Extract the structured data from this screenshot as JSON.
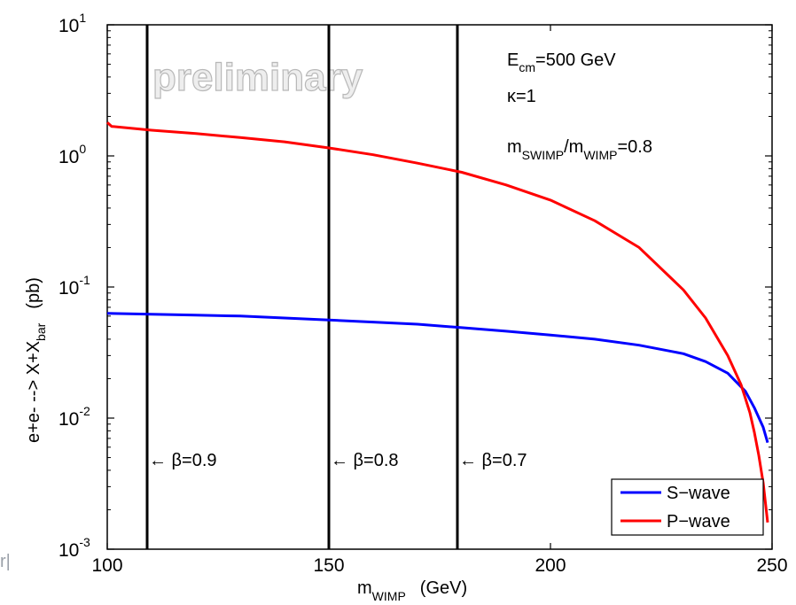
{
  "chart_data": {
    "type": "line",
    "y_scale": "log",
    "xlim": [
      100,
      250
    ],
    "ylim": [
      0.001,
      10
    ],
    "x_ticks": [
      100,
      150,
      200,
      250
    ],
    "y_tick_base": "10",
    "y_tick_exponents": [
      "-3",
      "-2",
      "-1",
      "0",
      "1"
    ],
    "xlabel": {
      "main": "m",
      "sub": "WIMP",
      "unit": "(GeV)"
    },
    "ylabel": {
      "main": "e+e- --> X+X",
      "sub": "bar",
      "unit": "(pb)"
    },
    "watermark": "preliminary",
    "legend_position": "bottom-right",
    "series": [
      {
        "name": "S−wave",
        "color": "#0000ff",
        "x": [
          100,
          110,
          120,
          130,
          140,
          150,
          160,
          170,
          180,
          190,
          200,
          210,
          220,
          230,
          235,
          240,
          244,
          246,
          248,
          249
        ],
        "y": [
          0.063,
          0.062,
          0.061,
          0.06,
          0.058,
          0.056,
          0.054,
          0.052,
          0.049,
          0.046,
          0.043,
          0.04,
          0.036,
          0.031,
          0.027,
          0.022,
          0.016,
          0.012,
          0.0085,
          0.0065
        ]
      },
      {
        "name": "P−wave",
        "color": "#ff0000",
        "x": [
          100,
          101,
          110,
          120,
          130,
          140,
          150,
          160,
          170,
          180,
          190,
          200,
          210,
          220,
          230,
          235,
          240,
          243,
          245,
          246,
          247,
          248,
          249
        ],
        "y": [
          1.8,
          1.68,
          1.57,
          1.48,
          1.38,
          1.28,
          1.15,
          1.02,
          0.88,
          0.75,
          0.6,
          0.46,
          0.32,
          0.2,
          0.095,
          0.058,
          0.03,
          0.018,
          0.011,
          0.0078,
          0.0052,
          0.0032,
          0.0016
        ]
      }
    ],
    "vertical_lines": [
      {
        "x": 109,
        "beta": "0.9"
      },
      {
        "x": 150,
        "beta": "0.8"
      },
      {
        "x": 179,
        "beta": "0.7"
      }
    ],
    "annotations": {
      "ecm": {
        "main": "E",
        "sub": "cm",
        "value": "=500 GeV"
      },
      "kappa": "κ=1",
      "mass_ratio": {
        "a": "m",
        "a_sub": "SWIMP",
        "sep": "/m",
        "b_sub": "WIMP",
        "value": "=0.8"
      }
    },
    "beta_prefix": "← β=",
    "edge_fragment": "r|"
  }
}
